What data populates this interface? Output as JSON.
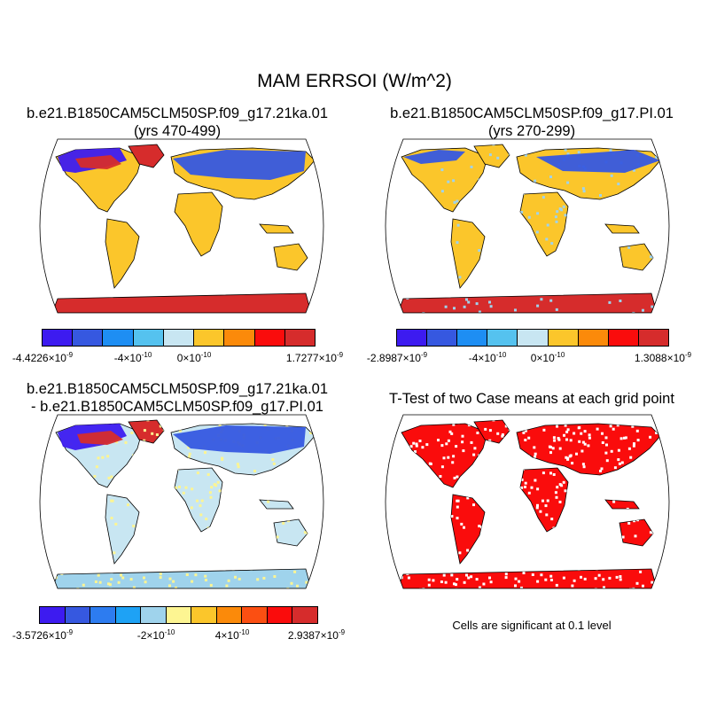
{
  "title": "MAM ERRSOI (W/m^2)",
  "panels": {
    "top_left": {
      "title_line1": "b.e21.B1850CAM5CLM50SP.f09_g17.21ka.01",
      "title_line2": "(yrs 470-499)",
      "colorbar": {
        "colors": [
          "#3d1bf0",
          "#3658e0",
          "#1e8ef3",
          "#55c2ef",
          "#c8e6f2",
          "#fbc62b",
          "#fb8a0a",
          "#fa0c0c",
          "#d62c2c"
        ],
        "labels": [
          {
            "mant": "-4.4226",
            "exp": "-9"
          },
          {
            "mant": "-4",
            "exp": "-10"
          },
          {
            "mant": "0",
            "exp": "-10"
          },
          {
            "mant": "1.7277",
            "exp": "-9"
          }
        ]
      }
    },
    "top_right": {
      "title_line1": "b.e21.B1850CAM5CLM50SP.f09_g17.PI.01",
      "title_line2": "(yrs 270-299)",
      "colorbar": {
        "colors": [
          "#3d1bf0",
          "#3658e0",
          "#1e8ef3",
          "#55c2ef",
          "#c8e6f2",
          "#fbc62b",
          "#fb8a0a",
          "#fa0c0c",
          "#d62c2c"
        ],
        "labels": [
          {
            "mant": "-2.8987",
            "exp": "-9"
          },
          {
            "mant": "-4",
            "exp": "-10"
          },
          {
            "mant": "0",
            "exp": "-10"
          },
          {
            "mant": "1.3088",
            "exp": "-9"
          }
        ]
      }
    },
    "bottom_left": {
      "title_line1": "b.e21.B1850CAM5CLM50SP.f09_g17.21ka.01",
      "title_line2": "- b.e21.B1850CAM5CLM50SP.f09_g17.PI.01",
      "colorbar": {
        "colors": [
          "#3d1bf0",
          "#3658e0",
          "#2d7cf0",
          "#1ea2f5",
          "#9fd3ec",
          "#fdf592",
          "#fbc62b",
          "#fb8a0a",
          "#fb4f12",
          "#fa0c0c",
          "#d62c2c"
        ],
        "labels": [
          {
            "mant": "-3.5726",
            "exp": "-9"
          },
          {
            "mant": "-2",
            "exp": "-10"
          },
          {
            "mant": "4",
            "exp": "-10"
          },
          {
            "mant": "2.9387",
            "exp": "-9"
          }
        ]
      }
    },
    "bottom_right": {
      "title_line1": "T-Test of two Case means at each grid point",
      "note": "Cells are significant at 0.1 level"
    }
  }
}
